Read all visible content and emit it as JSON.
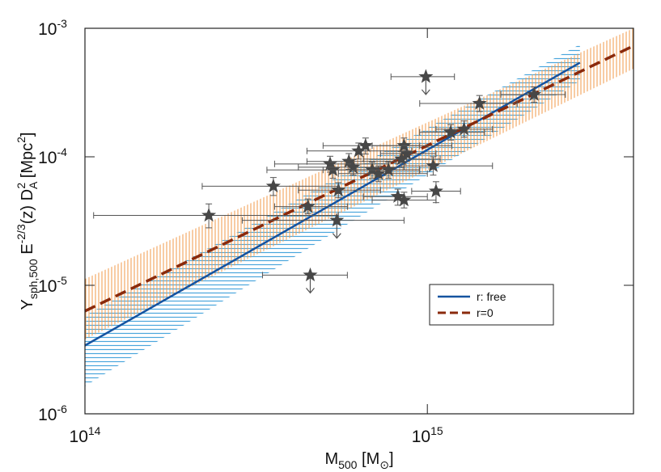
{
  "chart_data": {
    "type": "scatter",
    "log_x": true,
    "log_y": true,
    "xlim": [
      100000000000000.0,
      4000000000000000.0
    ],
    "ylim": [
      1e-06,
      0.001
    ],
    "xticks": [
      {
        "value": 100000000000000.0,
        "label": "10",
        "exponent": "14"
      },
      {
        "value": 1000000000000000.0,
        "label": "10",
        "exponent": "15"
      }
    ],
    "yticks": [
      {
        "value": 1e-06,
        "label": "10",
        "exponent": "-6"
      },
      {
        "value": 1e-05,
        "label": "10",
        "exponent": "-5"
      },
      {
        "value": 0.0001,
        "label": "10",
        "exponent": "-4"
      },
      {
        "value": 0.001,
        "label": "10",
        "exponent": "-3"
      }
    ],
    "xlabel": [
      {
        "text": "M"
      },
      {
        "text": "500",
        "sub": true
      },
      {
        "text": " [M"
      },
      {
        "text": "⊙",
        "sub": true
      },
      {
        "text": "]"
      }
    ],
    "ylabel": [
      {
        "text": "Y"
      },
      {
        "text": "sph,500",
        "sub": true
      },
      {
        "text": " E"
      },
      {
        "text": "-2/3",
        "sup": true
      },
      {
        "text": "(z) D"
      },
      {
        "text": "A",
        "sub": true
      },
      {
        "text": "2",
        "sup": true
      },
      {
        "text": " [Mpc"
      },
      {
        "text": "2",
        "sup": true
      },
      {
        "text": "]"
      }
    ],
    "legend": "lower right",
    "points": {
      "color": "#474747",
      "x": [
        990000000000000.0,
        1420000000000000.0,
        2050000000000000.0,
        1280000000000000.0,
        1170000000000000.0,
        855000000000000.0,
        870000000000000.0,
        840000000000000.0,
        660000000000000.0,
        630000000000000.0,
        590000000000000.0,
        520000000000000.0,
        530000000000000.0,
        607000000000000.0,
        690000000000000.0,
        720000000000000.0,
        770000000000000.0,
        1040000000000000.0,
        550000000000000.0,
        355000000000000.0,
        1060000000000000.0,
        820000000000000.0,
        855000000000000.0,
        448000000000000.0,
        230000000000000.0,
        544000000000000.0,
        455000000000000.0
      ],
      "y": [
        0.00042,
        0.00026,
        0.000305,
        0.000164,
        0.000155,
        0.000122,
        0.000106,
        9.6e-05,
        0.000122,
        0.000111,
        9.2e-05,
        8.8e-05,
        7.9e-05,
        8.3e-05,
        7.9e-05,
        7.4e-05,
        7.9e-05,
        8.5e-05,
        5.5e-05,
        5.9e-05,
        5.4e-05,
        4.9e-05,
        4.6e-05,
        4.1e-05,
        3.5e-05,
        3.2e-05,
        1.2e-05
      ],
      "xlow": [
        783000000000000.0,
        950000000000000.0,
        1640000000000000.0,
        1060000000000000.0,
        950000000000000.0,
        690000000000000.0,
        730000000000000.0,
        650000000000000.0,
        496000000000000.0,
        445000000000000.0,
        445000000000000.0,
        358000000000000.0,
        340000000000000.0,
        420000000000000.0,
        496000000000000.0,
        550000000000000.0,
        620000000000000.0,
        855000000000000.0,
        420000000000000.0,
        220000000000000.0,
        900000000000000.0,
        650000000000000.0,
        690000000000000.0,
        358000000000000.0,
        106000000000000.0,
        288000000000000.0,
        330000000000000.0
      ],
      "xhigh": [
        1200000000000000.0,
        1830000000000000.0,
        2530000000000000.0,
        1550000000000000.0,
        1470000000000000.0,
        1180000000000000.0,
        1060000000000000.0,
        1090000000000000.0,
        950000000000000.0,
        900000000000000.0,
        810000000000000.0,
        770000000000000.0,
        770000000000000.0,
        855000000000000.0,
        950000000000000.0,
        1000000000000000.0,
        950000000000000.0,
        1550000000000000.0,
        730000000000000.0,
        550000000000000.0,
        1250000000000000.0,
        1000000000000000.0,
        1060000000000000.0,
        584000000000000.0,
        550000000000000.0,
        855000000000000.0,
        584000000000000.0
      ],
      "ylow": [
        null,
        0.000225,
        0.000265,
        0.000142,
        0.000135,
        0.000105,
        9.2e-05,
        8.3e-05,
        0.000105,
        9.6e-05,
        8e-05,
        7.6e-05,
        6.8e-05,
        7.2e-05,
        6.8e-05,
        6.4e-05,
        6.8e-05,
        7.2e-05,
        4.8e-05,
        5e-05,
        4.4e-05,
        4.2e-05,
        4e-05,
        3.6e-05,
        2.8e-05,
        null,
        null
      ],
      "yhigh": [
        null,
        0.0003,
        0.00035,
        0.00019,
        0.000178,
        0.00014,
        0.000122,
        0.00011,
        0.00014,
        0.000128,
        0.000106,
        0.000101,
        9.1e-05,
        9.5e-05,
        9.1e-05,
        8.5e-05,
        9.1e-05,
        0.0001,
        6.3e-05,
        6.9e-05,
        6.4e-05,
        5.6e-05,
        5.3e-05,
        4.7e-05,
        4.3e-05,
        null,
        null
      ],
      "upper_limit": [
        true,
        false,
        false,
        false,
        false,
        false,
        false,
        false,
        false,
        false,
        false,
        false,
        false,
        false,
        false,
        false,
        false,
        false,
        false,
        false,
        false,
        false,
        false,
        false,
        false,
        true,
        true
      ]
    },
    "fits": [
      {
        "name": "r: free",
        "color": "#1553a0",
        "dashed": false,
        "x": [
          100000000000000.0,
          2790000000000000.0
        ],
        "y": [
          3.4e-06,
          0.00054
        ],
        "band": {
          "color": "#4aa6dc",
          "hatch": "horizontal",
          "x": [
            100000000000000.0,
            2790000000000000.0
          ],
          "lower": [
            1.64e-06,
            0.00039
          ],
          "upper": [
            5.8e-06,
            0.00075
          ]
        }
      },
      {
        "name": "r=0",
        "color": "#8a2a0c",
        "dashed": true,
        "x": [
          100000000000000.0,
          4000000000000000.0
        ],
        "y": [
          6.3e-06,
          0.00073
        ],
        "band": {
          "color": "#f29a4a",
          "hatch": "vertical",
          "x": [
            100000000000000.0,
            4000000000000000.0
          ],
          "lower": [
            3.8e-06,
            0.000485
          ],
          "upper": [
            1.12e-05,
            0.001
          ]
        }
      }
    ]
  }
}
